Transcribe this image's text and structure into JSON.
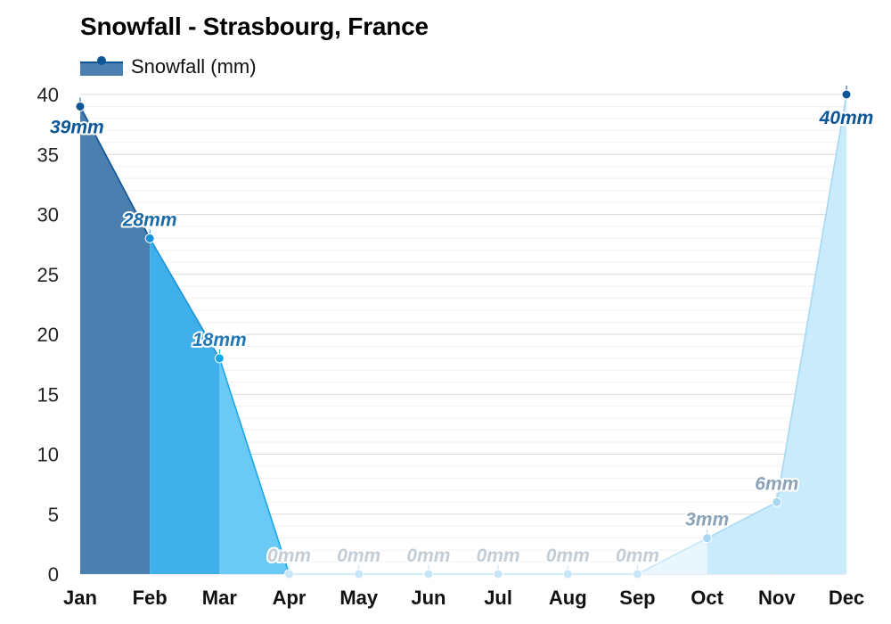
{
  "chart_data": {
    "type": "area",
    "title": "Snowfall - Strasbourg, France",
    "legend": [
      "Snowfall (mm)"
    ],
    "legend_position": "top-left",
    "xlabel": "",
    "ylabel": "",
    "categories": [
      "Jan",
      "Feb",
      "Mar",
      "Apr",
      "May",
      "Jun",
      "Jul",
      "Aug",
      "Sep",
      "Oct",
      "Nov",
      "Dec"
    ],
    "series": [
      {
        "name": "Snowfall (mm)",
        "values": [
          39,
          28,
          18,
          0,
          0,
          0,
          0,
          0,
          0,
          3,
          6,
          40
        ]
      }
    ],
    "data_labels": [
      "39mm",
      "28mm",
      "18mm",
      "0mm",
      "0mm",
      "0mm",
      "0mm",
      "0mm",
      "0mm",
      "3mm",
      "6mm",
      "40mm"
    ],
    "ylim": [
      0,
      40
    ],
    "yticks": [
      "0",
      "5",
      "10",
      "15",
      "20",
      "25",
      "30",
      "35",
      "40"
    ],
    "grid": true,
    "colors": {
      "deep": "#0c5596",
      "deep_fill": "#4a7fb0",
      "heavy": "#1b93d8",
      "heavy_fill": "#40b0ea",
      "medium": "#1aa7e8",
      "medium_fill": "#6acaf5",
      "light": "#a8d8f3",
      "light_fill": "#c9ebfb",
      "faint": "#c7e6f7",
      "faint_fill": "#e9f6fd",
      "label_deep": "#0c5596",
      "label_heavy": "#1a6aa6",
      "label_medium": "#2378b6",
      "label_light": "#8aa3b8",
      "label_faint": "#c3cdd6",
      "grid": "#e2e2e2"
    }
  }
}
